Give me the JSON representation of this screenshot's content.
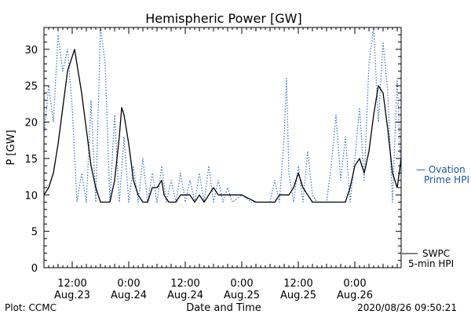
{
  "chart_data": {
    "type": "line",
    "title": "Hemispheric Power [GW]",
    "xlabel": "Date and Time",
    "ylabel": "P [GW]",
    "ylim": [
      0,
      33
    ],
    "xlim": [
      "2020-08-23 06:00",
      "2020-08-26 09:50"
    ],
    "yticks": [
      0,
      5,
      10,
      15,
      20,
      25,
      30
    ],
    "xticks": [
      {
        "x": "2020-08-23 12:00",
        "time": "12:00",
        "date": "Aug.23"
      },
      {
        "x": "2020-08-24 00:00",
        "time": "0:00",
        "date": "Aug.24"
      },
      {
        "x": "2020-08-24 12:00",
        "time": "12:00",
        "date": "Aug.24"
      },
      {
        "x": "2020-08-25 00:00",
        "time": "0:00",
        "date": "Aug.25"
      },
      {
        "x": "2020-08-25 12:00",
        "time": "12:00",
        "date": "Aug.25"
      },
      {
        "x": "2020-08-26 00:00",
        "time": "0:00",
        "date": "Aug.26"
      }
    ],
    "grid": false,
    "series": [
      {
        "name": "SWPC 5-min HPI",
        "color": "#000000",
        "style": "solid",
        "points": [
          [
            "2020-08-23 06:00",
            10
          ],
          [
            "2020-08-23 07:00",
            11
          ],
          [
            "2020-08-23 08:00",
            13
          ],
          [
            "2020-08-23 09:00",
            17
          ],
          [
            "2020-08-23 10:00",
            22
          ],
          [
            "2020-08-23 11:00",
            27
          ],
          [
            "2020-08-23 12:00",
            29
          ],
          [
            "2020-08-23 12:30",
            30
          ],
          [
            "2020-08-23 13:00",
            28
          ],
          [
            "2020-08-23 14:00",
            24
          ],
          [
            "2020-08-23 15:00",
            19
          ],
          [
            "2020-08-23 16:00",
            14
          ],
          [
            "2020-08-23 17:00",
            11
          ],
          [
            "2020-08-23 18:00",
            9
          ],
          [
            "2020-08-23 20:00",
            9
          ],
          [
            "2020-08-23 21:00",
            12
          ],
          [
            "2020-08-23 22:00",
            18
          ],
          [
            "2020-08-23 22:30",
            22
          ],
          [
            "2020-08-23 23:00",
            21
          ],
          [
            "2020-08-24 00:00",
            17
          ],
          [
            "2020-08-24 01:00",
            12
          ],
          [
            "2020-08-24 02:00",
            10
          ],
          [
            "2020-08-24 03:00",
            9
          ],
          [
            "2020-08-24 04:00",
            9
          ],
          [
            "2020-08-24 05:00",
            11
          ],
          [
            "2020-08-24 06:00",
            11
          ],
          [
            "2020-08-24 07:00",
            12
          ],
          [
            "2020-08-24 07:30",
            10
          ],
          [
            "2020-08-24 08:30",
            9
          ],
          [
            "2020-08-24 10:00",
            9
          ],
          [
            "2020-08-24 11:00",
            10
          ],
          [
            "2020-08-24 13:00",
            10
          ],
          [
            "2020-08-24 14:00",
            9
          ],
          [
            "2020-08-24 15:00",
            10
          ],
          [
            "2020-08-24 16:00",
            9
          ],
          [
            "2020-08-24 17:00",
            10
          ],
          [
            "2020-08-24 18:00",
            11
          ],
          [
            "2020-08-24 19:00",
            10
          ],
          [
            "2020-08-25 00:00",
            10
          ],
          [
            "2020-08-25 03:00",
            9
          ],
          [
            "2020-08-25 07:00",
            9
          ],
          [
            "2020-08-25 08:00",
            10
          ],
          [
            "2020-08-25 10:00",
            10
          ],
          [
            "2020-08-25 11:00",
            11
          ],
          [
            "2020-08-25 12:00",
            13
          ],
          [
            "2020-08-25 13:00",
            11
          ],
          [
            "2020-08-25 14:00",
            10
          ],
          [
            "2020-08-25 15:00",
            9
          ],
          [
            "2020-08-25 22:00",
            9
          ],
          [
            "2020-08-25 23:00",
            11
          ],
          [
            "2020-08-26 00:00",
            14
          ],
          [
            "2020-08-26 01:00",
            15
          ],
          [
            "2020-08-26 02:00",
            13
          ],
          [
            "2020-08-26 03:00",
            16
          ],
          [
            "2020-08-26 04:00",
            21
          ],
          [
            "2020-08-26 05:00",
            25
          ],
          [
            "2020-08-26 06:00",
            24
          ],
          [
            "2020-08-26 07:00",
            19
          ],
          [
            "2020-08-26 08:00",
            13
          ],
          [
            "2020-08-26 09:00",
            11
          ],
          [
            "2020-08-26 09:50",
            15
          ]
        ]
      },
      {
        "name": "Ovation Prime HPI",
        "color": "#3b6fd4",
        "style": "dotted",
        "points": [
          [
            "2020-08-23 06:00",
            18
          ],
          [
            "2020-08-23 07:00",
            25
          ],
          [
            "2020-08-23 08:00",
            20
          ],
          [
            "2020-08-23 09:00",
            32
          ],
          [
            "2020-08-23 10:00",
            27
          ],
          [
            "2020-08-23 11:00",
            30
          ],
          [
            "2020-08-23 12:00",
            22
          ],
          [
            "2020-08-23 13:00",
            9
          ],
          [
            "2020-08-23 14:00",
            13
          ],
          [
            "2020-08-23 15:00",
            9
          ],
          [
            "2020-08-23 16:00",
            23
          ],
          [
            "2020-08-23 17:00",
            9
          ],
          [
            "2020-08-23 18:00",
            33
          ],
          [
            "2020-08-23 19:00",
            28
          ],
          [
            "2020-08-23 20:00",
            9
          ],
          [
            "2020-08-23 21:00",
            21
          ],
          [
            "2020-08-23 22:00",
            9
          ],
          [
            "2020-08-23 23:00",
            18
          ],
          [
            "2020-08-24 00:00",
            9
          ],
          [
            "2020-08-24 01:00",
            14
          ],
          [
            "2020-08-24 02:00",
            9
          ],
          [
            "2020-08-24 03:00",
            15
          ],
          [
            "2020-08-24 04:00",
            9
          ],
          [
            "2020-08-24 05:00",
            13
          ],
          [
            "2020-08-24 06:00",
            9
          ],
          [
            "2020-08-24 07:00",
            14
          ],
          [
            "2020-08-24 08:00",
            9
          ],
          [
            "2020-08-24 09:00",
            12
          ],
          [
            "2020-08-24 10:00",
            9
          ],
          [
            "2020-08-24 11:00",
            13
          ],
          [
            "2020-08-24 12:00",
            9
          ],
          [
            "2020-08-24 13:00",
            12
          ],
          [
            "2020-08-24 14:00",
            9
          ],
          [
            "2020-08-24 15:00",
            13
          ],
          [
            "2020-08-24 16:00",
            9
          ],
          [
            "2020-08-24 17:00",
            14
          ],
          [
            "2020-08-24 18:00",
            9
          ],
          [
            "2020-08-24 19:00",
            12
          ],
          [
            "2020-08-24 20:00",
            9
          ],
          [
            "2020-08-24 21:00",
            11
          ],
          [
            "2020-08-24 22:00",
            9
          ],
          [
            "2020-08-25 00:00",
            10
          ],
          [
            "2020-08-25 02:00",
            9
          ],
          [
            "2020-08-25 06:00",
            9
          ],
          [
            "2020-08-25 07:00",
            12
          ],
          [
            "2020-08-25 08:00",
            9
          ],
          [
            "2020-08-25 09:00",
            18
          ],
          [
            "2020-08-25 09:30",
            26
          ],
          [
            "2020-08-25 10:00",
            13
          ],
          [
            "2020-08-25 11:00",
            9
          ],
          [
            "2020-08-25 12:00",
            14
          ],
          [
            "2020-08-25 13:00",
            9
          ],
          [
            "2020-08-25 14:00",
            16
          ],
          [
            "2020-08-25 15:00",
            10
          ],
          [
            "2020-08-25 16:00",
            9
          ],
          [
            "2020-08-25 18:00",
            9
          ],
          [
            "2020-08-25 19:00",
            14
          ],
          [
            "2020-08-25 20:00",
            21
          ],
          [
            "2020-08-25 21:00",
            12
          ],
          [
            "2020-08-25 22:00",
            18
          ],
          [
            "2020-08-25 23:00",
            9
          ],
          [
            "2020-08-26 00:00",
            15
          ],
          [
            "2020-08-26 01:00",
            22
          ],
          [
            "2020-08-26 02:00",
            12
          ],
          [
            "2020-08-26 03:00",
            28
          ],
          [
            "2020-08-26 04:00",
            33
          ],
          [
            "2020-08-26 05:00",
            20
          ],
          [
            "2020-08-26 06:00",
            31
          ],
          [
            "2020-08-26 07:00",
            24
          ],
          [
            "2020-08-26 08:00",
            9
          ],
          [
            "2020-08-26 09:00",
            26
          ],
          [
            "2020-08-26 09:50",
            12
          ]
        ]
      }
    ]
  },
  "labels": {
    "ovation_line1": "— Ovation",
    "ovation_line2": "Prime HPI",
    "swpc_line1": "SWPC",
    "swpc_line2": "5-min HPI",
    "footer_left": "Plot: CCMC",
    "footer_right": "2020/08/26 09:50:21"
  }
}
